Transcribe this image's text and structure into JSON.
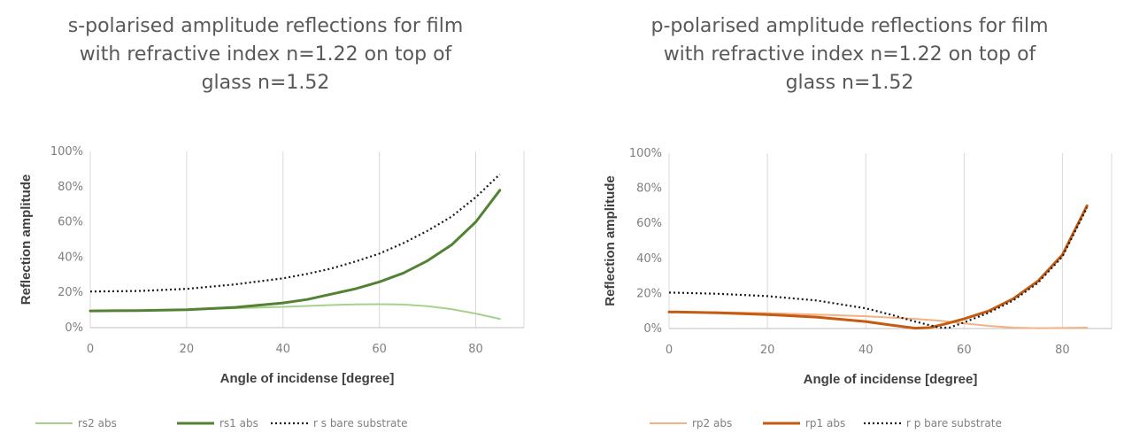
{
  "chart_data": [
    {
      "type": "line",
      "title": "s-polarised amplitude reflections for film with refractive index n=1.22 on top of glass n=1.52",
      "title_lines": [
        "s-polarised amplitude reflections for film",
        "with refractive index n=1.22 on top of",
        "glass n=1.52"
      ],
      "xlabel": "Angle of incidense [degree]",
      "ylabel": "Reflection amplitude",
      "xlim": [
        0,
        90
      ],
      "ylim": [
        0,
        1
      ],
      "x_ticks": [
        "0",
        "20",
        "40",
        "60",
        "80"
      ],
      "y_ticks": [
        "0%",
        "20%",
        "40%",
        "60%",
        "80%",
        "100%"
      ],
      "grid": "vertical",
      "legend_position": "bottom",
      "series": [
        {
          "name": "rs2 abs",
          "color": "#a9d18e",
          "dash": "solid",
          "width": 2,
          "points": [
            [
              0,
              0.095
            ],
            [
              10,
              0.097
            ],
            [
              20,
              0.102
            ],
            [
              30,
              0.11
            ],
            [
              40,
              0.118
            ],
            [
              50,
              0.128
            ],
            [
              55,
              0.132
            ],
            [
              60,
              0.133
            ],
            [
              65,
              0.131
            ],
            [
              70,
              0.122
            ],
            [
              75,
              0.105
            ],
            [
              80,
              0.08
            ],
            [
              85,
              0.05
            ]
          ]
        },
        {
          "name": "rs1 abs",
          "color": "#548235",
          "dash": "solid",
          "width": 3,
          "points": [
            [
              0,
              0.095
            ],
            [
              10,
              0.097
            ],
            [
              20,
              0.102
            ],
            [
              30,
              0.115
            ],
            [
              40,
              0.14
            ],
            [
              45,
              0.16
            ],
            [
              50,
              0.19
            ],
            [
              55,
              0.22
            ],
            [
              60,
              0.26
            ],
            [
              65,
              0.31
            ],
            [
              70,
              0.38
            ],
            [
              75,
              0.47
            ],
            [
              80,
              0.6
            ],
            [
              85,
              0.78
            ]
          ]
        },
        {
          "name": "r s bare substrate",
          "color": "#1a1a1a",
          "dash": "dotted",
          "width": 2.2,
          "points": [
            [
              0,
              0.205
            ],
            [
              10,
              0.208
            ],
            [
              20,
              0.22
            ],
            [
              30,
              0.245
            ],
            [
              40,
              0.28
            ],
            [
              45,
              0.305
            ],
            [
              50,
              0.335
            ],
            [
              55,
              0.375
            ],
            [
              60,
              0.42
            ],
            [
              65,
              0.48
            ],
            [
              70,
              0.55
            ],
            [
              75,
              0.63
            ],
            [
              80,
              0.74
            ],
            [
              85,
              0.87
            ]
          ]
        }
      ]
    },
    {
      "type": "line",
      "title": "p-polarised amplitude reflections for film with refractive index n=1.22 on top of glass n=1.52",
      "title_lines": [
        "p-polarised amplitude reflections for film",
        "with refractive index n=1.22 on top of",
        "glass n=1.52"
      ],
      "xlabel": "Angle of incidense [degree]",
      "ylabel": "Reflection amplitude",
      "xlim": [
        0,
        90
      ],
      "ylim": [
        0,
        1
      ],
      "x_ticks": [
        "0",
        "20",
        "40",
        "60",
        "80"
      ],
      "y_ticks": [
        "0%",
        "20%",
        "40%",
        "60%",
        "80%",
        "100%"
      ],
      "grid": "vertical",
      "legend_position": "bottom",
      "series": [
        {
          "name": "rp2 abs",
          "color": "#f4b183",
          "dash": "solid",
          "width": 2,
          "points": [
            [
              0,
              0.095
            ],
            [
              10,
              0.093
            ],
            [
              20,
              0.088
            ],
            [
              30,
              0.08
            ],
            [
              40,
              0.07
            ],
            [
              50,
              0.055
            ],
            [
              55,
              0.045
            ],
            [
              60,
              0.03
            ],
            [
              65,
              0.015
            ],
            [
              70,
              0.005
            ],
            [
              75,
              0.002
            ],
            [
              80,
              0.003
            ],
            [
              85,
              0.005
            ]
          ]
        },
        {
          "name": "rp1 abs",
          "color": "#c55a11",
          "dash": "solid",
          "width": 3,
          "points": [
            [
              0,
              0.095
            ],
            [
              10,
              0.09
            ],
            [
              20,
              0.08
            ],
            [
              30,
              0.065
            ],
            [
              40,
              0.04
            ],
            [
              45,
              0.02
            ],
            [
              50,
              0.002
            ],
            [
              53,
              0.005
            ],
            [
              56,
              0.025
            ],
            [
              60,
              0.055
            ],
            [
              65,
              0.1
            ],
            [
              70,
              0.17
            ],
            [
              75,
              0.27
            ],
            [
              80,
              0.42
            ],
            [
              85,
              0.7
            ]
          ]
        },
        {
          "name": "r p bare substrate",
          "color": "#1a1a1a",
          "dash": "dotted",
          "width": 2.2,
          "points": [
            [
              0,
              0.205
            ],
            [
              10,
              0.198
            ],
            [
              20,
              0.185
            ],
            [
              30,
              0.16
            ],
            [
              40,
              0.115
            ],
            [
              45,
              0.08
            ],
            [
              50,
              0.04
            ],
            [
              55,
              0.005
            ],
            [
              57,
              0.005
            ],
            [
              60,
              0.035
            ],
            [
              65,
              0.09
            ],
            [
              70,
              0.16
            ],
            [
              75,
              0.26
            ],
            [
              80,
              0.41
            ],
            [
              85,
              0.69
            ]
          ]
        }
      ]
    }
  ]
}
